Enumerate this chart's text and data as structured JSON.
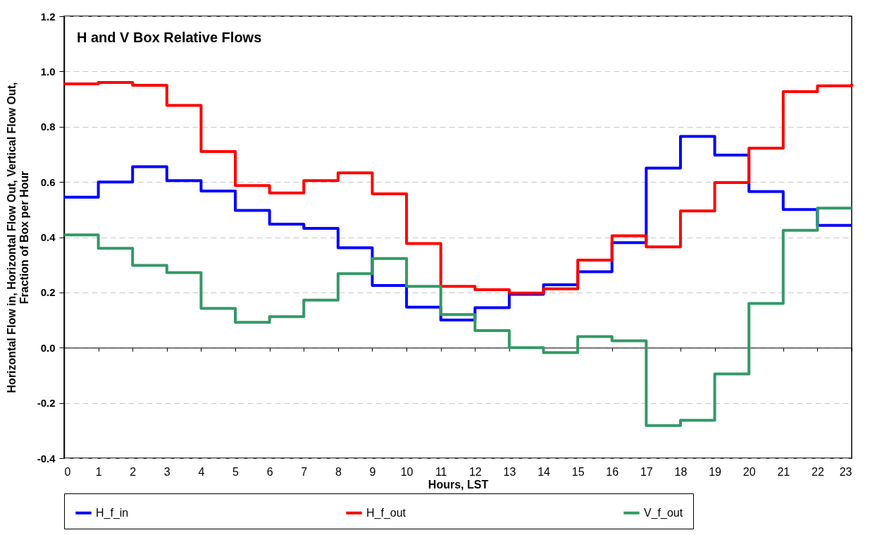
{
  "chart_data": {
    "type": "step",
    "title": "H and V Box Relative Flows",
    "xlabel": "Hours, LST",
    "ylabel": "Horizontal Flow in, Horizontal Flow Out, Vertical Flow Out, Fraction of Box per Hour",
    "x": [
      0,
      1,
      2,
      3,
      4,
      5,
      6,
      7,
      8,
      9,
      10,
      11,
      12,
      13,
      14,
      15,
      16,
      17,
      18,
      19,
      20,
      21,
      22,
      23
    ],
    "series": [
      {
        "name": "H_f_in",
        "color": "#0000ff",
        "values": [
          0.545,
          0.6,
          0.655,
          0.605,
          0.567,
          0.497,
          0.447,
          0.432,
          0.362,
          0.225,
          0.147,
          0.1,
          0.145,
          0.193,
          0.228,
          0.275,
          0.38,
          0.65,
          0.765,
          0.697,
          0.565,
          0.5,
          0.443,
          0.443
        ]
      },
      {
        "name": "H_f_out",
        "color": "#ff0000",
        "values": [
          0.955,
          0.96,
          0.95,
          0.877,
          0.71,
          0.587,
          0.56,
          0.605,
          0.633,
          0.557,
          0.377,
          0.222,
          0.21,
          0.198,
          0.213,
          0.317,
          0.405,
          0.365,
          0.495,
          0.598,
          0.722,
          0.927,
          0.948,
          0.955
        ]
      },
      {
        "name": "V_f_out",
        "color": "#339966",
        "values": [
          0.408,
          0.36,
          0.298,
          0.272,
          0.142,
          0.092,
          0.112,
          0.172,
          0.268,
          0.323,
          0.222,
          0.12,
          0.062,
          0.0,
          -0.018,
          0.04,
          0.025,
          -0.282,
          -0.263,
          -0.095,
          0.16,
          0.425,
          0.505,
          0.505
        ]
      }
    ],
    "xlim": [
      0,
      23
    ],
    "xticks": [
      0,
      1,
      2,
      3,
      4,
      5,
      6,
      7,
      8,
      9,
      10,
      11,
      12,
      13,
      14,
      15,
      16,
      17,
      18,
      19,
      20,
      21,
      22,
      23
    ],
    "ylim": [
      -0.4,
      1.2
    ],
    "yticks": [
      {
        "value": -0.4,
        "label": "-0.4"
      },
      {
        "value": -0.2,
        "label": "-0.2"
      },
      {
        "value": 0,
        "label": "0.0"
      },
      {
        "value": 0.2,
        "label": "0.2"
      },
      {
        "value": 0.4,
        "label": "0.4"
      },
      {
        "value": 0.6,
        "label": "0.6"
      },
      {
        "value": 0.8,
        "label": "0.8"
      },
      {
        "value": 1,
        "label": "1.0"
      },
      {
        "value": 1.2,
        "label": "1.2"
      }
    ],
    "grid": "y",
    "legend": "bottom",
    "line_style": "solid",
    "marker": "none"
  }
}
